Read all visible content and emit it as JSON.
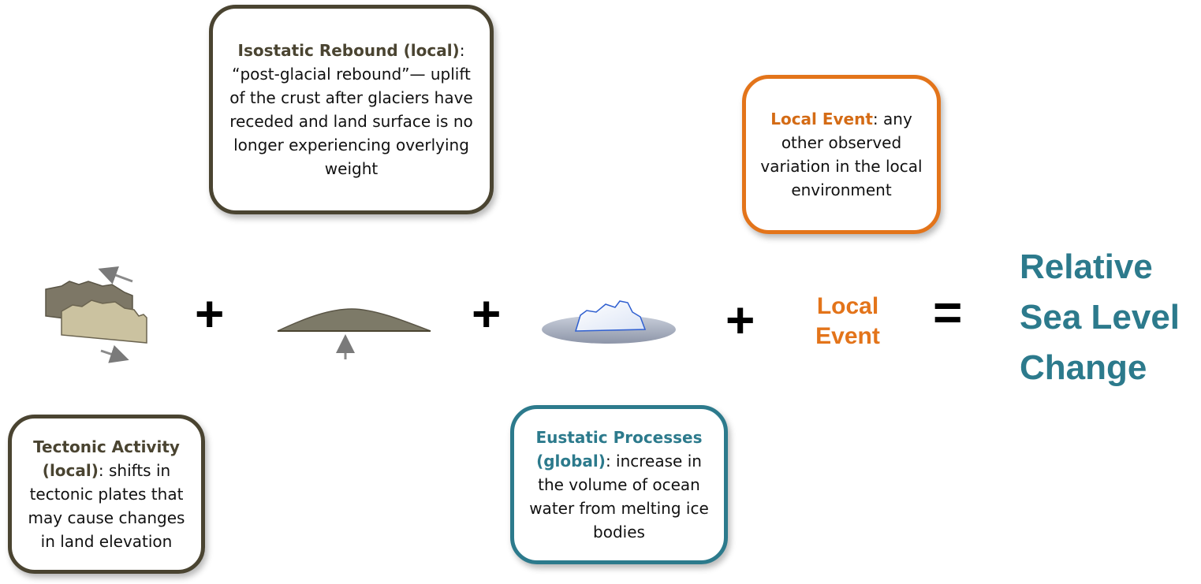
{
  "isostatic": {
    "title": "Isostatic Rebound (local)",
    "sep": ":",
    "body": "“post-glacial rebound”— uplift of the crust after glaciers have receded and land surface is no longer experiencing overlying weight"
  },
  "local_event_box": {
    "title": "Local Event",
    "body": ": any other observed variation in the local environment"
  },
  "tectonic": {
    "title": "Tectonic Activity (local)",
    "body": ": shifts in tectonic plates that may cause changes in land elevation"
  },
  "eustatic": {
    "title": "Eustatic Processes (global)",
    "body": ": increase in the volume of ocean water from melting ice bodies"
  },
  "equation": {
    "plus": "+",
    "equals": "=",
    "local_event_line1": "Local",
    "local_event_line2": "Event",
    "result_line1": "Relative",
    "result_line2": "Sea Level",
    "result_line3": "Change"
  },
  "icons": [
    "tectonic-plates-icon",
    "rebound-mound-icon",
    "iceberg-icon"
  ],
  "colors": {
    "olive": "#4a4431",
    "orange": "#e3741a",
    "teal": "#2c7a8c"
  }
}
